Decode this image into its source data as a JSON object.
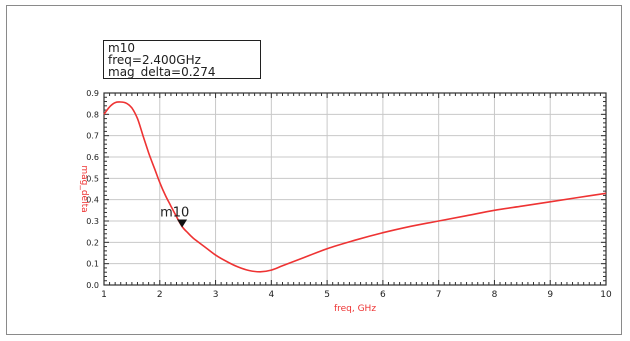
{
  "marker_box": {
    "name": "m10",
    "freq_line": "freq=2.400GHz",
    "value_line": "mag_delta=0.274"
  },
  "chart_data": {
    "type": "line",
    "title": "",
    "xlabel": "freq, GHz",
    "ylabel": "mag_delta",
    "xlim": [
      1,
      10
    ],
    "ylim": [
      0,
      0.9
    ],
    "x_ticks": [
      "1",
      "2",
      "3",
      "4",
      "5",
      "6",
      "7",
      "8",
      "9",
      "10"
    ],
    "y_ticks": [
      "0.0",
      "0.1",
      "0.2",
      "0.3",
      "0.4",
      "0.5",
      "0.6",
      "0.7",
      "0.8",
      "0.9"
    ],
    "grid": true,
    "series": [
      {
        "color": "#ee3333",
        "x": [
          1.0,
          1.1,
          1.2,
          1.3,
          1.4,
          1.5,
          1.6,
          1.7,
          1.8,
          1.9,
          2.0,
          2.1,
          2.2,
          2.3,
          2.4,
          2.5,
          2.6,
          2.8,
          3.0,
          3.2,
          3.4,
          3.6,
          3.8,
          4.0,
          4.2,
          4.5,
          5.0,
          5.5,
          6.0,
          6.5,
          7.0,
          7.5,
          8.0,
          8.5,
          9.0,
          9.5,
          10.0
        ],
        "y": [
          0.8,
          0.835,
          0.855,
          0.858,
          0.852,
          0.83,
          0.78,
          0.7,
          0.62,
          0.55,
          0.48,
          0.42,
          0.37,
          0.32,
          0.274,
          0.245,
          0.22,
          0.18,
          0.14,
          0.11,
          0.085,
          0.068,
          0.062,
          0.07,
          0.09,
          0.12,
          0.17,
          0.21,
          0.245,
          0.275,
          0.3,
          0.325,
          0.35,
          0.37,
          0.39,
          0.41,
          0.43
        ]
      }
    ],
    "marker": {
      "label": "m10",
      "x": 2.4,
      "y": 0.274
    }
  },
  "colors": {
    "trace": "#ee3333",
    "axis_labels": "#ee3333",
    "grid": "#c8c8c8",
    "axes": "#303030"
  }
}
